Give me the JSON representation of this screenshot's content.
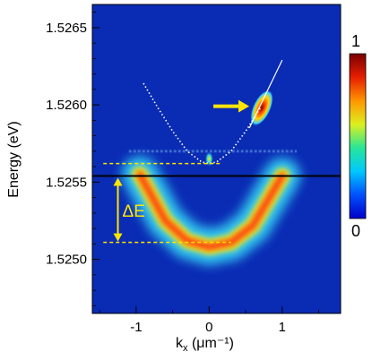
{
  "chart_data": {
    "type": "heatmap",
    "xlabel": "k",
    "xlabel_sub": "x",
    "xlabel_unit": " (μm⁻¹)",
    "ylabel": "Energy (eV)",
    "xlim": [
      -1.6,
      1.8
    ],
    "ylim": [
      1.52465,
      1.52665
    ],
    "x_ticks": [
      {
        "value": -1,
        "label": "-1"
      },
      {
        "value": 0,
        "label": "0"
      },
      {
        "value": 1,
        "label": "1"
      }
    ],
    "y_ticks": [
      {
        "value": 1.5265,
        "label": "1.5265"
      },
      {
        "value": 1.526,
        "label": "1.5260"
      },
      {
        "value": 1.5255,
        "label": "1.5255"
      },
      {
        "value": 1.525,
        "label": "1.5250"
      }
    ],
    "divider_energy": 1.52554,
    "colorbar": {
      "min": 0,
      "max": 1,
      "min_label": "0",
      "max_label": "1",
      "colors": [
        "#0000c8",
        "#0050ff",
        "#00c8ff",
        "#28e696",
        "#dcf01e",
        "#ff9600",
        "#e61e00",
        "#780000"
      ]
    },
    "background_color": "#0a2bb4",
    "lower_branch": {
      "description_points": [
        [
          -0.95,
          1.52555
        ],
        [
          -0.6,
          1.52525
        ],
        [
          -0.3,
          1.52512
        ],
        [
          0,
          1.52508
        ],
        [
          0.3,
          1.52511
        ],
        [
          0.6,
          1.52522
        ],
        [
          1.0,
          1.52554
        ]
      ]
    },
    "dotted_parabola": {
      "x": [
        -0.9,
        -0.7,
        -0.5,
        -0.3,
        -0.1,
        0,
        0.1,
        0.3,
        0.5,
        0.7
      ],
      "y": [
        1.52614,
        1.52598,
        1.52583,
        1.5257,
        1.52563,
        1.52562,
        1.52563,
        1.5257,
        1.52583,
        1.52598
      ]
    },
    "solid_line": {
      "x": [
        0.55,
        1.0
      ],
      "y": [
        1.52585,
        1.52629
      ]
    },
    "bright_spot": {
      "x": 0.72,
      "y": 1.52598
    },
    "small_spot": {
      "x": 0.0,
      "y": 1.52565
    },
    "dashed_upper_energy": 1.52562,
    "dashed_lower_energy": 1.52511,
    "delta_label": "ΔE",
    "annotation_color": "#ffe600"
  }
}
